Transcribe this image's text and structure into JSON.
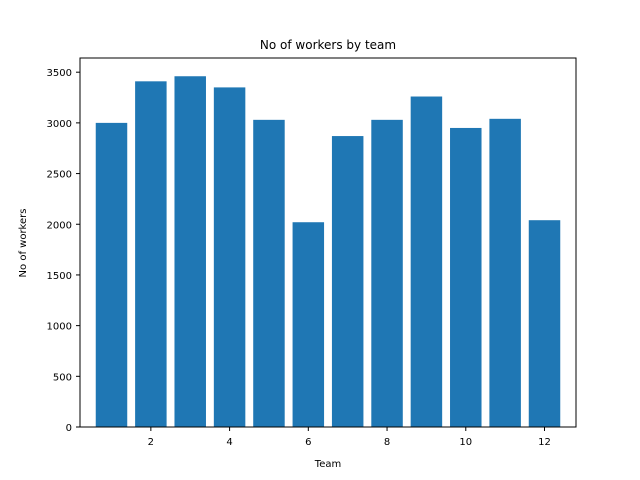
{
  "chart_data": {
    "type": "bar",
    "title": "No of workers by team",
    "xlabel": "Team",
    "ylabel": "No of workers",
    "categories": [
      1,
      2,
      3,
      4,
      5,
      6,
      7,
      8,
      9,
      10,
      11,
      12
    ],
    "values": [
      3000,
      3410,
      3460,
      3350,
      3030,
      2020,
      2870,
      3030,
      3260,
      2950,
      3040,
      2040
    ],
    "xlim": [
      0.2,
      12.8
    ],
    "ylim": [
      0,
      3640
    ],
    "xticks": [
      2,
      4,
      6,
      8,
      10,
      12
    ],
    "yticks": [
      0,
      500,
      1000,
      1500,
      2000,
      2500,
      3000,
      3500
    ],
    "grid": false,
    "legend": "none",
    "colors": {
      "bar": "#1f77b4",
      "axes": "#000000",
      "background": "#ffffff"
    }
  }
}
